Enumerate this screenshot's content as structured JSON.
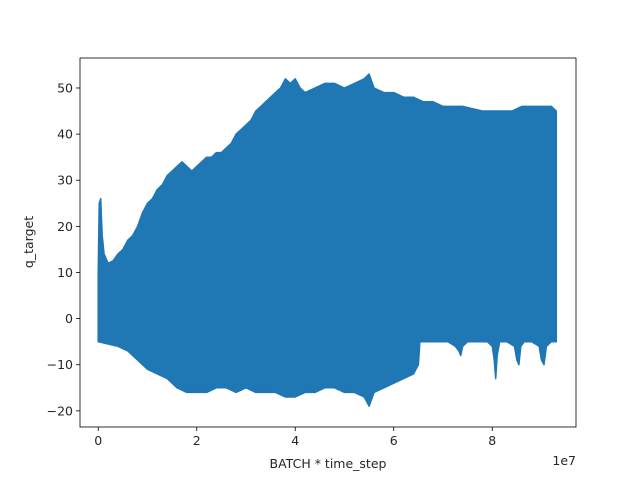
{
  "chart_data": {
    "type": "area",
    "xlabel": "BATCH * time_step",
    "ylabel": "q_target",
    "x_offset_label": "1e7",
    "xlim": [
      -3700000,
      97000000
    ],
    "ylim": [
      -23.5,
      56.5
    ],
    "x_ticks": [
      0,
      20000000,
      40000000,
      60000000,
      80000000
    ],
    "x_tick_labels": [
      "0",
      "2",
      "4",
      "6",
      "8"
    ],
    "y_ticks": [
      -20,
      -10,
      0,
      10,
      20,
      30,
      40,
      50
    ],
    "y_tick_labels": [
      "−20",
      "−10",
      "0",
      "10",
      "20",
      "30",
      "40",
      "50"
    ],
    "series_color": "#1f77b4",
    "series": [
      {
        "upper_envelope": [
          [
            0,
            10
          ],
          [
            200000,
            25
          ],
          [
            500000,
            26
          ],
          [
            800000,
            18
          ],
          [
            1200000,
            14
          ],
          [
            2000000,
            12
          ],
          [
            3000000,
            12.5
          ],
          [
            4000000,
            14
          ],
          [
            5000000,
            15
          ],
          [
            6000000,
            17
          ],
          [
            7000000,
            18
          ],
          [
            8000000,
            20
          ],
          [
            9000000,
            23
          ],
          [
            10000000,
            25
          ],
          [
            11000000,
            26
          ],
          [
            12000000,
            28
          ],
          [
            13000000,
            29
          ],
          [
            14000000,
            31
          ],
          [
            15000000,
            32
          ],
          [
            16000000,
            33
          ],
          [
            17000000,
            34
          ],
          [
            18000000,
            33
          ],
          [
            19000000,
            32
          ],
          [
            20000000,
            33
          ],
          [
            21000000,
            34
          ],
          [
            22000000,
            35
          ],
          [
            23000000,
            35
          ],
          [
            24000000,
            36
          ],
          [
            25000000,
            36
          ],
          [
            26000000,
            37
          ],
          [
            27000000,
            38
          ],
          [
            28000000,
            40
          ],
          [
            29000000,
            41
          ],
          [
            30000000,
            42
          ],
          [
            31000000,
            43
          ],
          [
            32000000,
            45
          ],
          [
            33000000,
            46
          ],
          [
            34000000,
            47
          ],
          [
            35000000,
            48
          ],
          [
            36000000,
            49
          ],
          [
            37000000,
            50
          ],
          [
            38000000,
            52
          ],
          [
            39000000,
            51
          ],
          [
            40000000,
            52
          ],
          [
            41000000,
            50
          ],
          [
            42000000,
            49
          ],
          [
            44000000,
            50
          ],
          [
            46000000,
            51
          ],
          [
            48000000,
            51
          ],
          [
            50000000,
            50
          ],
          [
            52000000,
            51
          ],
          [
            54000000,
            52
          ],
          [
            55000000,
            53
          ],
          [
            56000000,
            50
          ],
          [
            58000000,
            49
          ],
          [
            60000000,
            49
          ],
          [
            62000000,
            48
          ],
          [
            64000000,
            48
          ],
          [
            66000000,
            47
          ],
          [
            68000000,
            47
          ],
          [
            70000000,
            46
          ],
          [
            72000000,
            46
          ],
          [
            74000000,
            46
          ],
          [
            76000000,
            45.5
          ],
          [
            78000000,
            45
          ],
          [
            80000000,
            45
          ],
          [
            82000000,
            45
          ],
          [
            84000000,
            45
          ],
          [
            86000000,
            46
          ],
          [
            88000000,
            46
          ],
          [
            90000000,
            46
          ],
          [
            92000000,
            46
          ],
          [
            93000000,
            45
          ]
        ],
        "lower_envelope": [
          [
            0,
            -5
          ],
          [
            2000000,
            -5.5
          ],
          [
            4000000,
            -6
          ],
          [
            6000000,
            -7
          ],
          [
            8000000,
            -9
          ],
          [
            10000000,
            -11
          ],
          [
            12000000,
            -12
          ],
          [
            14000000,
            -13
          ],
          [
            16000000,
            -15
          ],
          [
            18000000,
            -16
          ],
          [
            20000000,
            -16
          ],
          [
            22000000,
            -16
          ],
          [
            24000000,
            -15
          ],
          [
            26000000,
            -15
          ],
          [
            28000000,
            -16
          ],
          [
            30000000,
            -15
          ],
          [
            32000000,
            -16
          ],
          [
            34000000,
            -16
          ],
          [
            36000000,
            -16
          ],
          [
            38000000,
            -17
          ],
          [
            40000000,
            -17
          ],
          [
            42000000,
            -16
          ],
          [
            44000000,
            -16
          ],
          [
            46000000,
            -15
          ],
          [
            48000000,
            -15
          ],
          [
            50000000,
            -16
          ],
          [
            52000000,
            -16
          ],
          [
            54000000,
            -17
          ],
          [
            55000000,
            -19
          ],
          [
            56000000,
            -16
          ],
          [
            58000000,
            -15
          ],
          [
            60000000,
            -14
          ],
          [
            62000000,
            -13
          ],
          [
            64000000,
            -12
          ],
          [
            65000000,
            -10
          ],
          [
            65300000,
            -5
          ],
          [
            67000000,
            -5
          ],
          [
            69000000,
            -5
          ],
          [
            71000000,
            -5
          ],
          [
            72500000,
            -6
          ],
          [
            73200000,
            -7
          ],
          [
            73600000,
            -8
          ],
          [
            74000000,
            -6
          ],
          [
            75000000,
            -5
          ],
          [
            77000000,
            -5
          ],
          [
            79000000,
            -5
          ],
          [
            80000000,
            -6
          ],
          [
            80400000,
            -9
          ],
          [
            80700000,
            -13
          ],
          [
            81000000,
            -8
          ],
          [
            81500000,
            -5
          ],
          [
            83000000,
            -5
          ],
          [
            84500000,
            -6
          ],
          [
            85000000,
            -9
          ],
          [
            85400000,
            -10
          ],
          [
            85800000,
            -6
          ],
          [
            86500000,
            -5
          ],
          [
            88000000,
            -5
          ],
          [
            89500000,
            -6
          ],
          [
            90000000,
            -9
          ],
          [
            90500000,
            -10
          ],
          [
            91000000,
            -6
          ],
          [
            92000000,
            -5
          ],
          [
            93000000,
            -5
          ]
        ]
      }
    ]
  }
}
